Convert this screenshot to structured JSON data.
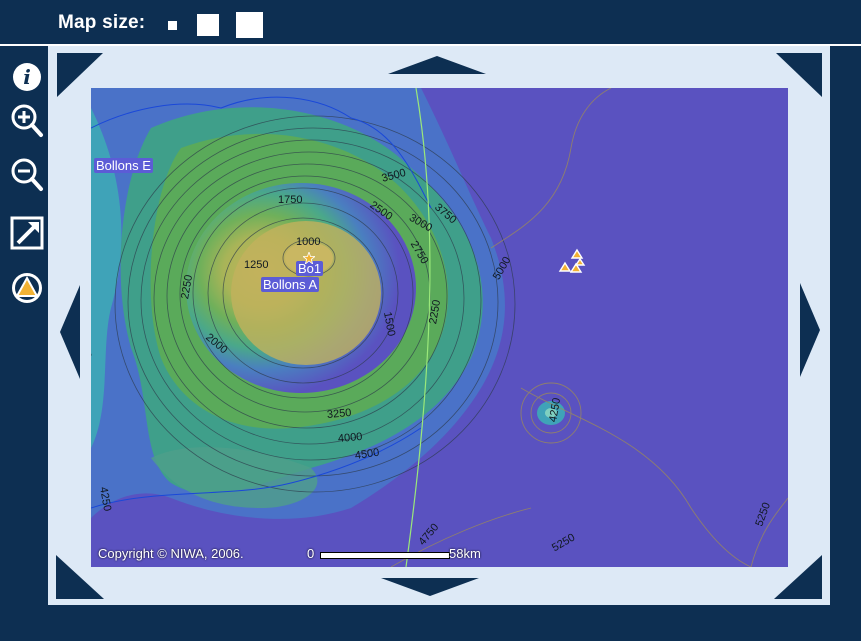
{
  "toolbar": {
    "map_size_label": "Map size:"
  },
  "tools": [
    "info-icon",
    "zoom-in-icon",
    "zoom-out-icon",
    "external-link-icon",
    "layers-icon"
  ],
  "map": {
    "copyright": "Copyright © NIWA, 2006.",
    "scale_start": "0",
    "scale_end": "58km",
    "sites": {
      "bollons_e": "Bollons E",
      "bo1": "Bo1",
      "bollons_a": "Bollons A"
    },
    "contours": [
      "1000",
      "1250",
      "1500",
      "1750",
      "2000",
      "2250",
      "2250",
      "2500",
      "2750",
      "3000",
      "3250",
      "3500",
      "3750",
      "4000",
      "4000",
      "4250",
      "4250",
      "4500",
      "4750",
      "5000",
      "5250",
      "5250",
      "4250"
    ]
  },
  "colors": {
    "frame_dark": "#0d2f52",
    "frame_light": "#dde9f6",
    "deep_water": "#5a52c0"
  }
}
